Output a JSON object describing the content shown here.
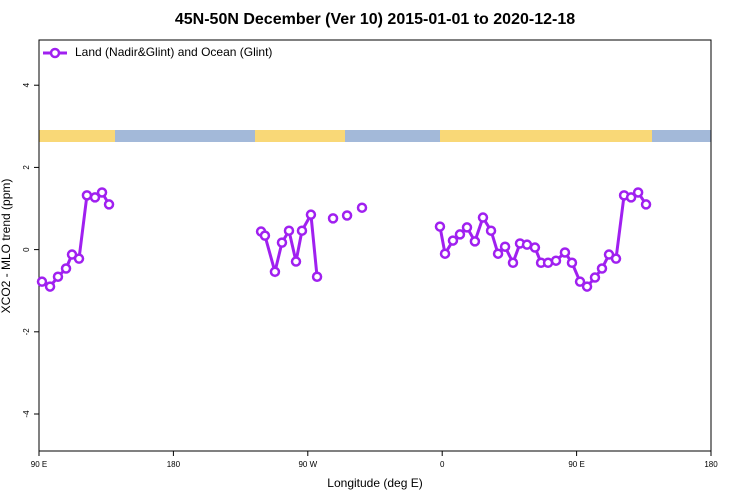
{
  "chart_data": {
    "type": "line",
    "title": "45N-50N December (Ver 10)   2015-01-01 to 2020-12-18",
    "x_label": "Longitude (deg E)",
    "y_label": "XCO2 - MLO trend (ppm)",
    "xlim": [
      90,
      540
    ],
    "xticks": [
      {
        "value": 90,
        "label": "90 E"
      },
      {
        "value": 180,
        "label": "180"
      },
      {
        "value": 270,
        "label": "90 W"
      },
      {
        "value": 360,
        "label": "0"
      },
      {
        "value": 450,
        "label": "90 E"
      },
      {
        "value": 540,
        "label": "180"
      }
    ],
    "ylim": [
      -4.9,
      5.1
    ],
    "yticks": [
      -4,
      -2,
      0,
      2,
      4
    ],
    "legend": "top-left",
    "series": [
      {
        "name": "Land (Nadir&Glint) and Ocean (Glint)",
        "color": "#a020f0",
        "x": [
          92.0,
          97.4,
          102.7,
          108.1,
          112.1,
          116.8,
          122.1,
          127.5,
          132.2,
          136.9,
          null,
          238.7,
          241.3,
          248.0,
          252.7,
          257.4,
          262.1,
          266.1,
          272.1,
          276.2,
          null,
          286.9,
          null,
          296.3,
          null,
          306.3,
          null,
          358.5,
          361.9,
          367.2,
          371.9,
          376.6,
          381.9,
          387.3,
          392.7,
          397.4,
          402.1,
          407.4,
          412.1,
          416.8,
          422.1,
          426.2,
          430.9,
          436.2,
          442.2,
          446.9,
          452.3,
          457.0,
          462.3,
          467.0,
          471.7,
          476.4,
          481.8,
          486.5,
          491.2,
          496.5
        ],
        "values": [
          -0.78,
          -0.9,
          -0.66,
          -0.46,
          -0.12,
          -0.22,
          1.32,
          1.27,
          1.39,
          1.1,
          null,
          0.44,
          0.34,
          -0.54,
          0.17,
          0.46,
          -0.29,
          0.46,
          0.85,
          -0.66,
          null,
          0.76,
          null,
          0.83,
          null,
          1.02,
          null,
          0.56,
          -0.1,
          0.22,
          0.37,
          0.54,
          0.2,
          0.78,
          0.46,
          -0.1,
          0.07,
          -0.32,
          0.15,
          0.12,
          0.05,
          -0.32,
          -0.32,
          -0.27,
          -0.07,
          -0.32,
          -0.78,
          -0.9,
          -0.68,
          -0.46,
          -0.12,
          -0.22,
          1.32,
          1.27,
          1.39,
          1.1
        ]
      }
    ]
  }
}
